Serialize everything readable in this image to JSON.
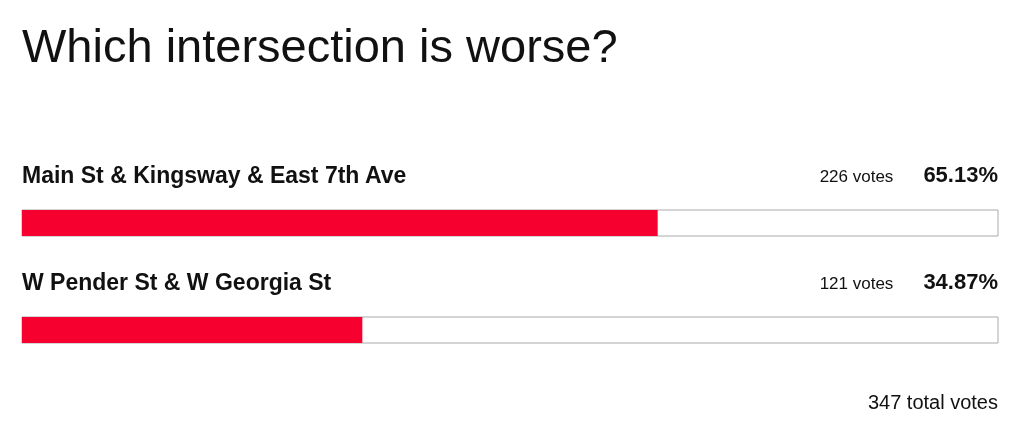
{
  "chart_data": {
    "type": "bar",
    "orientation": "horizontal",
    "title": "Which intersection is worse?",
    "categories": [
      "Main St & Kingsway & East 7th Ave",
      "W Pender St & W Georgia St"
    ],
    "values": [
      65.13,
      34.87
    ],
    "value_labels": [
      "65.13%",
      "34.87%"
    ],
    "color": "#f5002f",
    "xlim": [
      0,
      100
    ],
    "tick_labels": false,
    "grid": false,
    "legend": false,
    "annotations": [
      "226 votes",
      "121 votes",
      "347 total votes"
    ]
  }
}
